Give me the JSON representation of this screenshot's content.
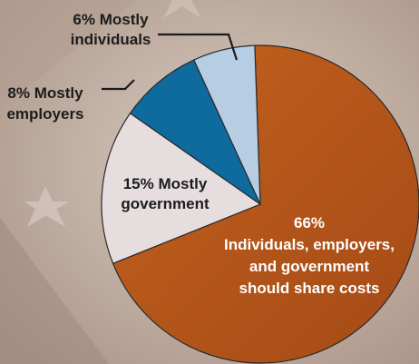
{
  "chart_data": {
    "type": "pie",
    "categories": [
      "Individuals, employers, and government should share costs",
      "Mostly government",
      "Mostly employers",
      "Mostly individuals"
    ],
    "values": [
      66,
      15,
      8,
      6
    ],
    "unit": "%",
    "colors": {
      "share": "#b6541a",
      "government": "#e6dede",
      "employers": "#0f6a9d",
      "individuals": "#b7cde3",
      "leader_line": "#1b1b1b",
      "label_dark": "#1c1c1c",
      "label_light": "#ffffff"
    },
    "labels": {
      "individuals_line1": "6% Mostly",
      "individuals_line2": "individuals",
      "employers_line1": "8% Mostly",
      "employers_line2": "employers",
      "government_line1": "15% Mostly",
      "government_line2": "government",
      "share_line1": "66%",
      "share_line2": "Individuals, employers,",
      "share_line3": "and government",
      "share_line4": "should share costs"
    }
  }
}
